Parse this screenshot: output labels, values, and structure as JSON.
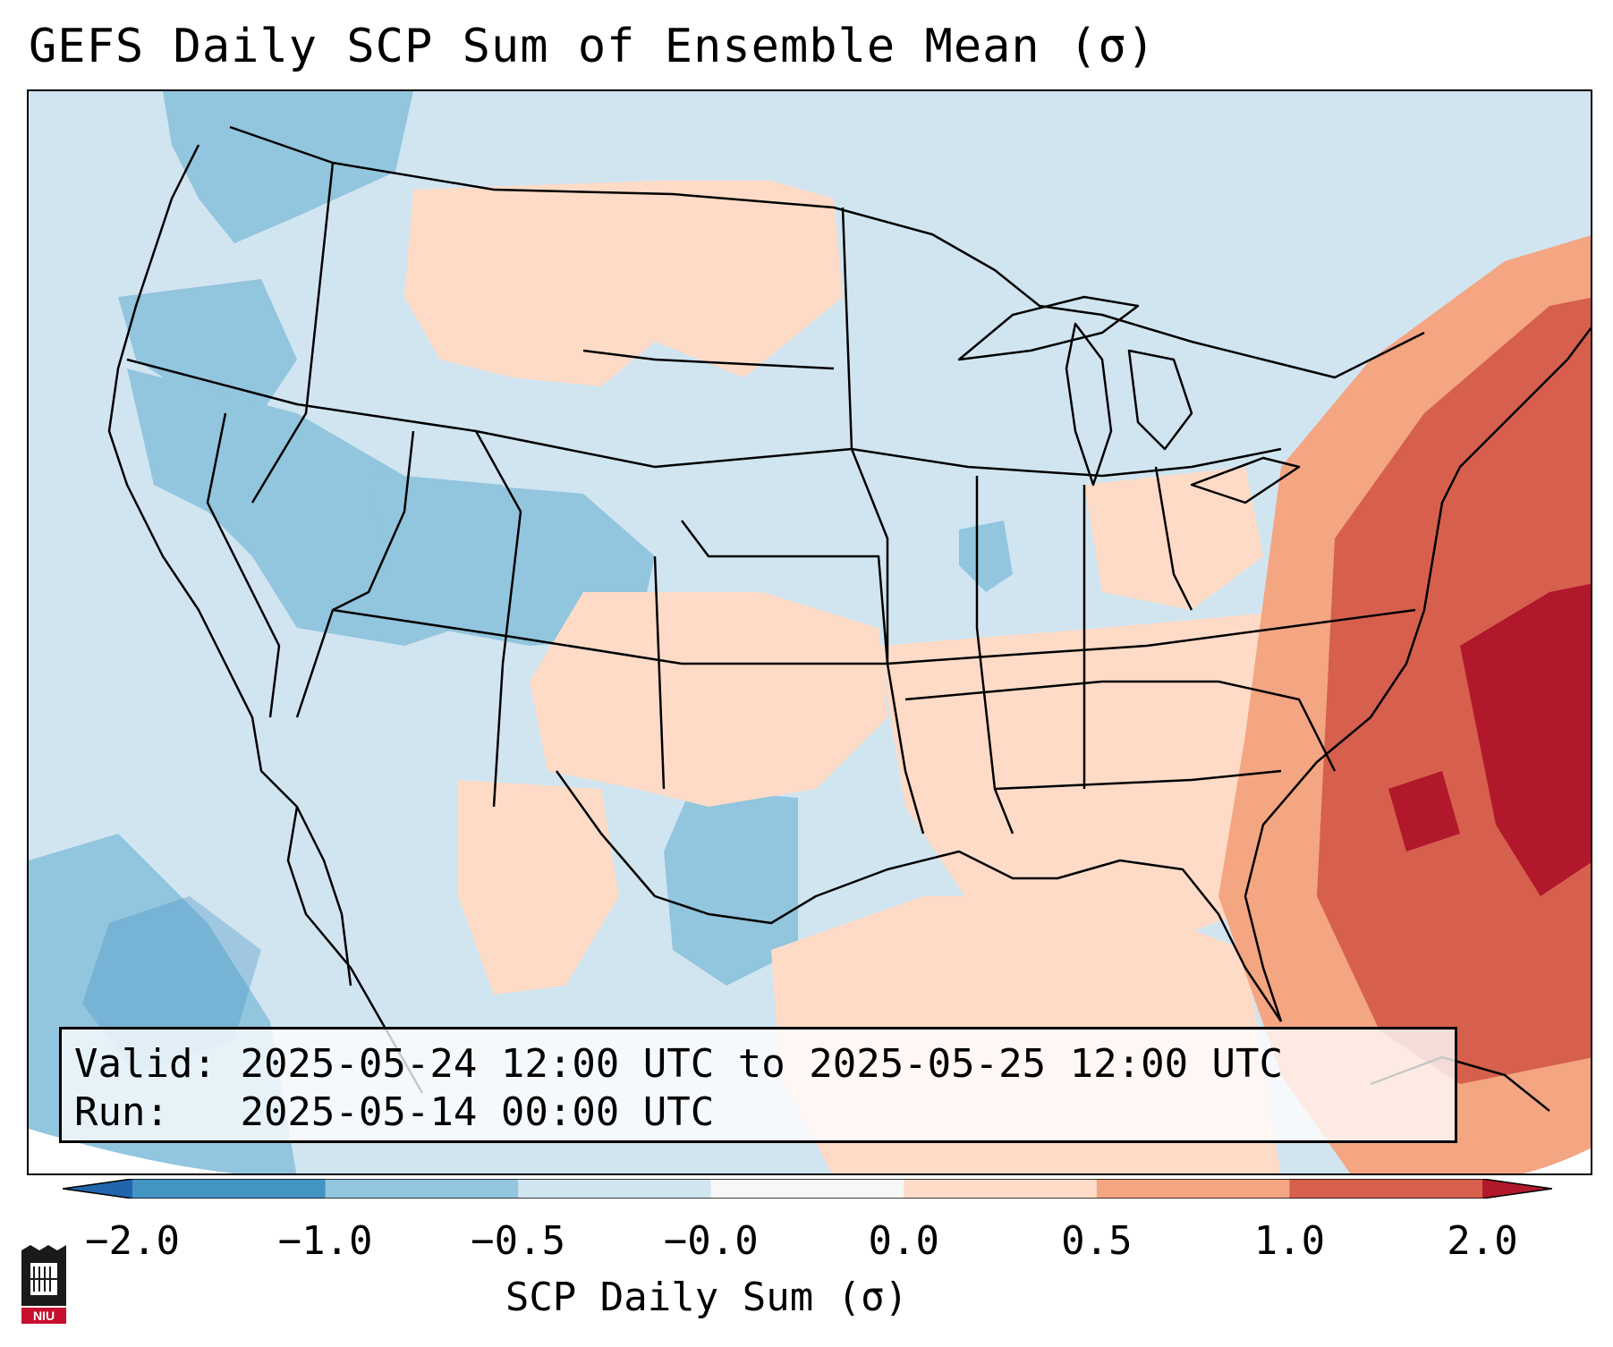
{
  "title": "GEFS Daily SCP Sum of Ensemble Mean (σ)",
  "info": {
    "valid_label": "Valid:",
    "valid_value": "2025-05-24 12:00 UTC to 2025-05-25 12:00 UTC",
    "run_label": "Run:",
    "run_value": "2025-05-14 00:00 UTC"
  },
  "colorbar": {
    "label": "SCP Daily Sum (σ)",
    "ticks": [
      "−2.0",
      "−1.0",
      "−0.5",
      "−0.0",
      "0.0",
      "0.5",
      "1.0",
      "2.0"
    ],
    "bins": [
      {
        "range": [
          -2.0,
          -1.0
        ],
        "color": "#4393c3"
      },
      {
        "range": [
          -1.0,
          -0.5
        ],
        "color": "#92c5de"
      },
      {
        "range": [
          -0.5,
          -0.0
        ],
        "color": "#d1e5f0"
      },
      {
        "range": [
          -0.0,
          0.0
        ],
        "color": "#f7f7f7"
      },
      {
        "range": [
          0.0,
          0.5
        ],
        "color": "#fddbc7"
      },
      {
        "range": [
          0.5,
          1.0
        ],
        "color": "#f4a582"
      },
      {
        "range": [
          1.0,
          2.0
        ],
        "color": "#d6604d"
      }
    ],
    "under_color": "#2166ac",
    "over_color": "#b2182b"
  },
  "map_layers": {
    "background_color": "#d1e5f0",
    "regions": [
      {
        "level": "-1.0 to -0.5",
        "color": "#92c5de",
        "area": "Pacific Northwest"
      },
      {
        "level": "-1.0 to -0.5",
        "color": "#92c5de",
        "area": "Great Basin"
      },
      {
        "level": "-1.0 to -0.5",
        "color": "#92c5de",
        "area": "Utah / Colorado"
      },
      {
        "level": "-1.0 to -0.5",
        "color": "#92c5de",
        "area": "Eastern Pacific"
      },
      {
        "level": "-1.0 to -0.5",
        "color": "#92c5de",
        "area": "West Texas"
      },
      {
        "level": "0.0 to 0.5",
        "color": "#fddbc7",
        "area": "Northern Plains"
      },
      {
        "level": "0.0 to 0.5",
        "color": "#fddbc7",
        "area": "Southern Plains"
      },
      {
        "level": "0.0 to 0.5",
        "color": "#fddbc7",
        "area": "Southeast US"
      },
      {
        "level": "0.0 to 0.5",
        "color": "#fddbc7",
        "area": "Gulf of Mexico"
      },
      {
        "level": "0.5 to 1.0",
        "color": "#f4a582",
        "area": "Western Atlantic"
      },
      {
        "level": "1.0 to 2.0",
        "color": "#d6604d",
        "area": "Western Atlantic"
      },
      {
        "level": "> 2.0",
        "color": "#b2182b",
        "area": "Western Atlantic"
      }
    ],
    "outline_color": "#000000"
  },
  "logo": {
    "text": "NIU",
    "color": "#c8102e"
  }
}
